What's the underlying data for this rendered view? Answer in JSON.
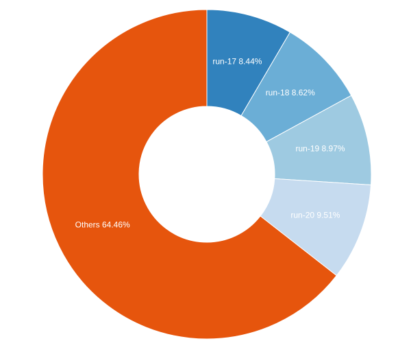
{
  "chart_data": {
    "type": "pie",
    "variant": "donut",
    "title": "",
    "slices": [
      {
        "label": "run-17",
        "percent_text": "8.44%",
        "value": 8.44,
        "color": "#3182bd"
      },
      {
        "label": "run-18",
        "percent_text": "8.62%",
        "value": 8.62,
        "color": "#6baed6"
      },
      {
        "label": "run-19",
        "percent_text": "8.97%",
        "value": 8.97,
        "color": "#9ecae1"
      },
      {
        "label": "run-20",
        "percent_text": "9.51%",
        "value": 9.51,
        "color": "#c6dbef"
      },
      {
        "label": "Others",
        "percent_text": "64.46%",
        "value": 64.46,
        "color": "#e6550d"
      }
    ],
    "legend": "none",
    "labels_inside_slices": true
  }
}
